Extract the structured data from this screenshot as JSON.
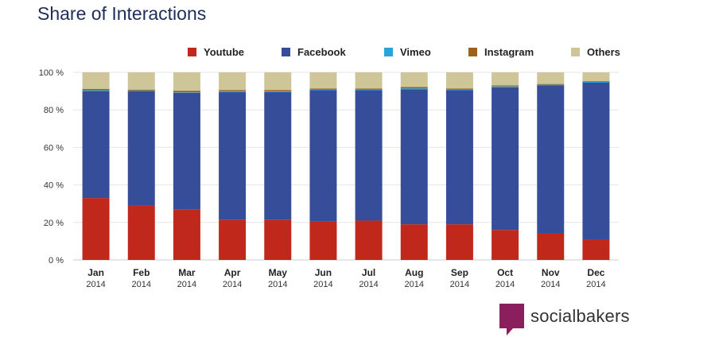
{
  "title": "Share of Interactions",
  "brand": {
    "name": "socialbakers"
  },
  "legend": [
    {
      "label": "Youtube",
      "color": "#c0281b"
    },
    {
      "label": "Facebook",
      "color": "#364e99"
    },
    {
      "label": "Vimeo",
      "color": "#29a4dc"
    },
    {
      "label": "Instagram",
      "color": "#9c6219"
    },
    {
      "label": "Others",
      "color": "#cec599"
    }
  ],
  "chart_data": {
    "type": "bar",
    "stacked": true,
    "categories": [
      [
        "Jan",
        "2014"
      ],
      [
        "Feb",
        "2014"
      ],
      [
        "Mar",
        "2014"
      ],
      [
        "Apr",
        "2014"
      ],
      [
        "May",
        "2014"
      ],
      [
        "Jun",
        "2014"
      ],
      [
        "Jul",
        "2014"
      ],
      [
        "Aug",
        "2014"
      ],
      [
        "Sep",
        "2014"
      ],
      [
        "Oct",
        "2014"
      ],
      [
        "Nov",
        "2014"
      ],
      [
        "Dec",
        "2014"
      ]
    ],
    "series": [
      {
        "name": "Youtube",
        "color": "#c0281b",
        "values": [
          33,
          29,
          27,
          21.5,
          21.5,
          20.5,
          21,
          19,
          19,
          16,
          14,
          11
        ]
      },
      {
        "name": "Facebook",
        "color": "#364e99",
        "values": [
          57,
          61,
          62,
          68,
          68,
          70,
          69.5,
          72,
          71.5,
          76,
          79,
          83.5
        ]
      },
      {
        "name": "Vimeo",
        "color": "#29a4dc",
        "values": [
          0.5,
          0.3,
          0.3,
          0.5,
          0.4,
          0.4,
          0.4,
          0.5,
          0.4,
          0.5,
          0.4,
          0.5
        ]
      },
      {
        "name": "Instagram",
        "color": "#9c6219",
        "values": [
          0.7,
          0.5,
          0.9,
          0.6,
          0.7,
          0.5,
          0.5,
          0.7,
          0.5,
          0.5,
          0.4,
          0.4
        ]
      },
      {
        "name": "Others",
        "color": "#cec599",
        "values": [
          8.8,
          9.2,
          9.8,
          9.4,
          9.4,
          8.6,
          8.6,
          7.8,
          8.6,
          7,
          6.2,
          4.6
        ]
      }
    ],
    "yticks": [
      "0 %",
      "20 %",
      "40 %",
      "60 %",
      "80 %",
      "100 %"
    ],
    "ylim": [
      0,
      100
    ],
    "grid": true,
    "legend_position": "top"
  }
}
